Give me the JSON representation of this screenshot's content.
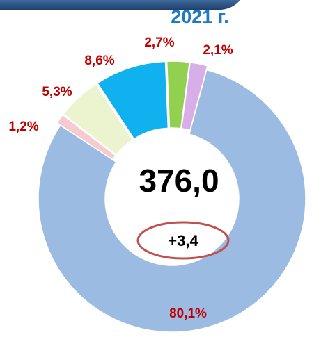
{
  "chart_data": {
    "type": "donut",
    "title": "2021 г.",
    "values": [
      80.1,
      1.2,
      5.3,
      8.6,
      2.7,
      2.1
    ],
    "value_labels": [
      "80,1%",
      "1,2%",
      "5,3%",
      "8,6%",
      "2,7%",
      "2,1%"
    ],
    "colors": [
      "#9bbbe3",
      "#f6cbd0",
      "#ecf3cf",
      "#0fb2ee",
      "#92d050",
      "#d8aee8"
    ],
    "center_value": "376,0",
    "change": "+3,4"
  }
}
